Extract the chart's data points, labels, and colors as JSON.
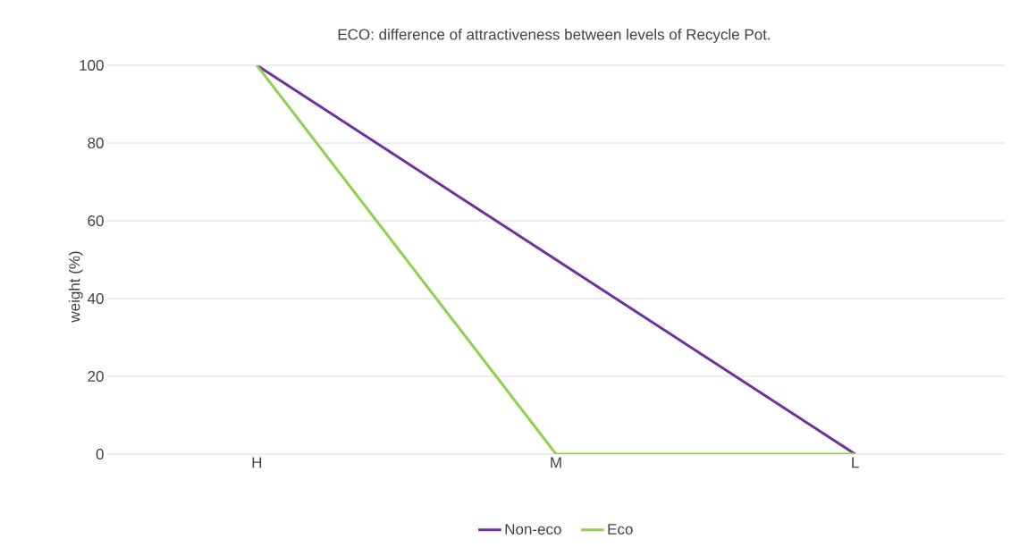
{
  "chart_data": {
    "type": "line",
    "title": "ECO: difference of attractiveness between levels of Recycle Pot.",
    "ylabel": "weight (%)",
    "categories": [
      "H",
      "M",
      "L"
    ],
    "series": [
      {
        "name": "Non-eco",
        "color": "#7030a0",
        "values": [
          100,
          50,
          0
        ]
      },
      {
        "name": "Eco",
        "color": "#92d050",
        "values": [
          100,
          0,
          0
        ]
      }
    ],
    "ylim": [
      0,
      100
    ],
    "yticks": [
      0,
      20,
      40,
      60,
      80,
      100
    ],
    "grid": "y",
    "legend": "bottom",
    "marker": "none",
    "line_style": "solid"
  }
}
